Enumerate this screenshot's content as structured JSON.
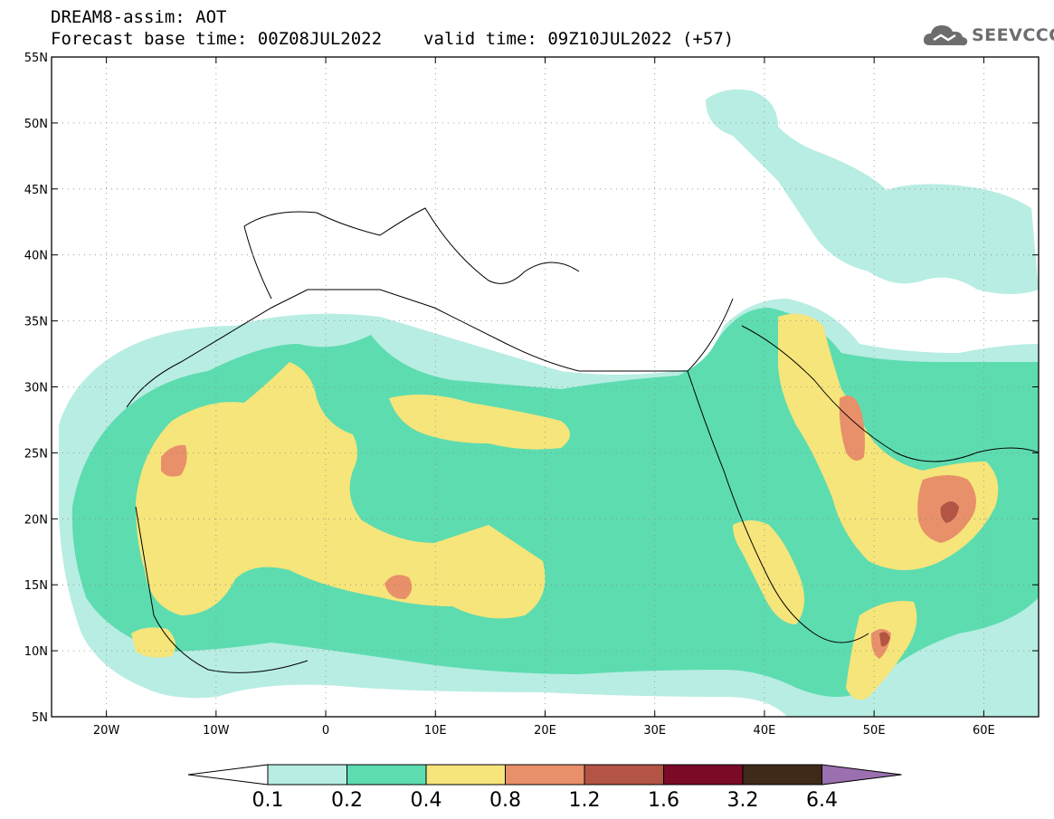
{
  "header": {
    "line1": "DREAM8-assim: AOT",
    "base_time": "Forecast base time: 00Z08JUL2022",
    "valid_time": "valid time: 09Z10JUL2022 (+57)"
  },
  "logo": {
    "text": "SEEVCCC",
    "icon": "cloud-icon"
  },
  "map": {
    "lon_range": [
      -25,
      65
    ],
    "lat_range": [
      5,
      55
    ],
    "lat_ticks": [
      {
        "value": 55,
        "label": "55N"
      },
      {
        "value": 50,
        "label": "50N"
      },
      {
        "value": 45,
        "label": "45N"
      },
      {
        "value": 40,
        "label": "40N"
      },
      {
        "value": 35,
        "label": "35N"
      },
      {
        "value": 30,
        "label": "30N"
      },
      {
        "value": 25,
        "label": "25N"
      },
      {
        "value": 20,
        "label": "20N"
      },
      {
        "value": 15,
        "label": "15N"
      },
      {
        "value": 10,
        "label": "10N"
      },
      {
        "value": 5,
        "label": "5N"
      }
    ],
    "lon_ticks": [
      {
        "value": -20,
        "label": "20W"
      },
      {
        "value": -10,
        "label": "10W"
      },
      {
        "value": 0,
        "label": "0"
      },
      {
        "value": 10,
        "label": "10E"
      },
      {
        "value": 20,
        "label": "20E"
      },
      {
        "value": 30,
        "label": "30E"
      },
      {
        "value": 40,
        "label": "40E"
      },
      {
        "value": 50,
        "label": "50E"
      },
      {
        "value": 60,
        "label": "60E"
      }
    ],
    "grid": true
  },
  "colorbar": {
    "levels": [
      "0.1",
      "0.2",
      "0.4",
      "0.8",
      "1.2",
      "1.6",
      "3.2",
      "6.4"
    ],
    "colors": [
      "#ffffff",
      "#b8ede3",
      "#5ddcb0",
      "#f6e57a",
      "#e8906a",
      "#b35444",
      "#7a0a26",
      "#3f2a1a",
      "#9a70b0"
    ]
  }
}
